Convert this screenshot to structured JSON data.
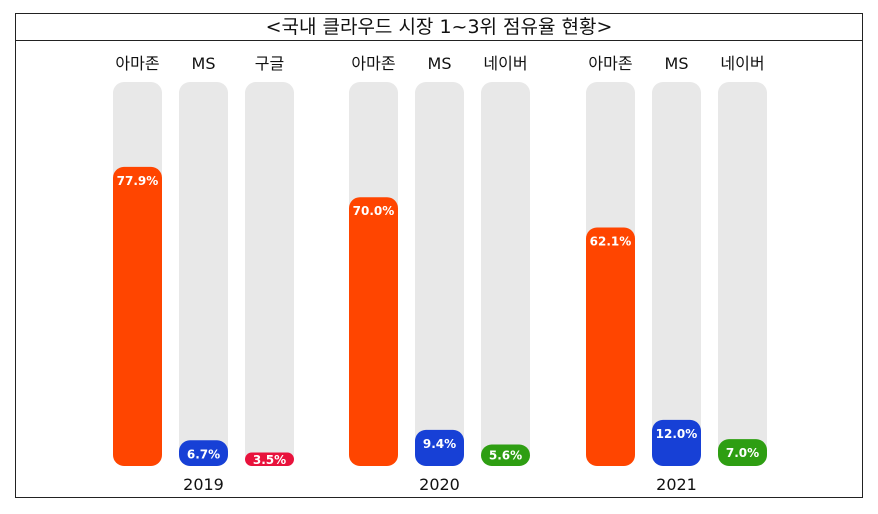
{
  "chart_data": {
    "type": "bar",
    "title": "<국내 클라우드 시장 1~3위 점유율 현황>",
    "ylim": [
      0,
      100
    ],
    "groups": [
      {
        "year": "2019",
        "bars": [
          {
            "name": "아마존",
            "value": 77.9,
            "label": "77.9%",
            "color": "#FF4500"
          },
          {
            "name": "MS",
            "value": 6.7,
            "label": "6.7%",
            "color": "#1740D6"
          },
          {
            "name": "구글",
            "value": 3.5,
            "label": "3.5%",
            "color": "#E8123C"
          }
        ]
      },
      {
        "year": "2020",
        "bars": [
          {
            "name": "아마존",
            "value": 70.0,
            "label": "70.0%",
            "color": "#FF4500"
          },
          {
            "name": "MS",
            "value": 9.4,
            "label": "9.4%",
            "color": "#1740D6"
          },
          {
            "name": "네이버",
            "value": 5.6,
            "label": "5.6%",
            "color": "#2E9E12"
          }
        ]
      },
      {
        "year": "2021",
        "bars": [
          {
            "name": "아마존",
            "value": 62.1,
            "label": "62.1%",
            "color": "#FF4500"
          },
          {
            "name": "MS",
            "value": 12.0,
            "label": "12.0%",
            "color": "#1740D6"
          },
          {
            "name": "네이버",
            "value": 7.0,
            "label": "7.0%",
            "color": "#2E9E12"
          }
        ]
      }
    ]
  },
  "colors": {
    "track": "#E8E8E8",
    "border": "#222222"
  }
}
